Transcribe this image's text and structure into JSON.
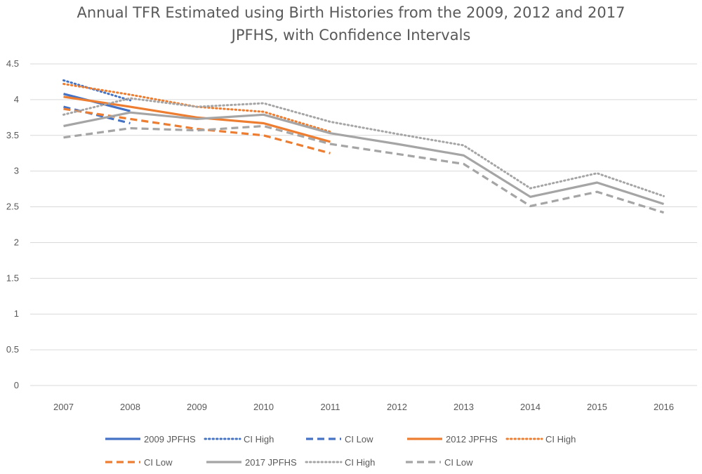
{
  "chart_data": {
    "type": "line",
    "title_lines": [
      "Annual TFR Estimated using Birth Histories from the 2009, 2012 and 2017",
      "JPFHS, with Confidence Intervals"
    ],
    "xlabel": "",
    "ylabel": "",
    "categories": [
      "2007",
      "2008",
      "2009",
      "2010",
      "2011",
      "2012",
      "2013",
      "2014",
      "2015",
      "2016"
    ],
    "ylim": [
      0,
      4.5
    ],
    "yticks": [
      "0",
      "0.5",
      "1",
      "1.5",
      "2",
      "2.5",
      "3",
      "3.5",
      "4",
      "4.5"
    ],
    "grid": true,
    "legend_position": "bottom",
    "series": [
      {
        "name": "2009 JPFHS",
        "color": "#4472C4",
        "style": "solid",
        "values": [
          4.08,
          3.84,
          null,
          null,
          null,
          null,
          null,
          null,
          null,
          null
        ]
      },
      {
        "name": "CI High",
        "color": "#4472C4",
        "style": "dotted",
        "values": [
          4.27,
          3.99,
          null,
          null,
          null,
          null,
          null,
          null,
          null,
          null
        ]
      },
      {
        "name": "CI Low",
        "color": "#4472C4",
        "style": "dashed",
        "values": [
          3.9,
          3.67,
          null,
          null,
          null,
          null,
          null,
          null,
          null,
          null
        ]
      },
      {
        "name": "2012 JPFHS",
        "color": "#ED7D31",
        "style": "solid",
        "values": [
          4.04,
          3.9,
          3.75,
          3.67,
          3.41,
          null,
          null,
          null,
          null,
          null
        ]
      },
      {
        "name": "CI High",
        "color": "#ED7D31",
        "style": "dotted",
        "values": [
          4.22,
          4.07,
          3.9,
          3.83,
          3.55,
          null,
          null,
          null,
          null,
          null
        ]
      },
      {
        "name": "CI Low",
        "color": "#ED7D31",
        "style": "dashed",
        "values": [
          3.87,
          3.73,
          3.59,
          3.5,
          3.25,
          null,
          null,
          null,
          null,
          null
        ]
      },
      {
        "name": "2017 JPFHS",
        "color": "#A5A5A5",
        "style": "solid",
        "values": [
          3.63,
          3.82,
          3.73,
          3.79,
          3.53,
          3.38,
          3.22,
          2.64,
          2.84,
          2.54
        ]
      },
      {
        "name": "CI High",
        "color": "#A5A5A5",
        "style": "dotted",
        "values": [
          3.79,
          4.02,
          3.9,
          3.95,
          3.69,
          3.52,
          3.36,
          2.76,
          2.97,
          2.65
        ]
      },
      {
        "name": "CI Low",
        "color": "#A5A5A5",
        "style": "dashed",
        "values": [
          3.47,
          3.6,
          3.57,
          3.63,
          3.38,
          3.24,
          3.1,
          2.51,
          2.71,
          2.42
        ]
      }
    ]
  }
}
